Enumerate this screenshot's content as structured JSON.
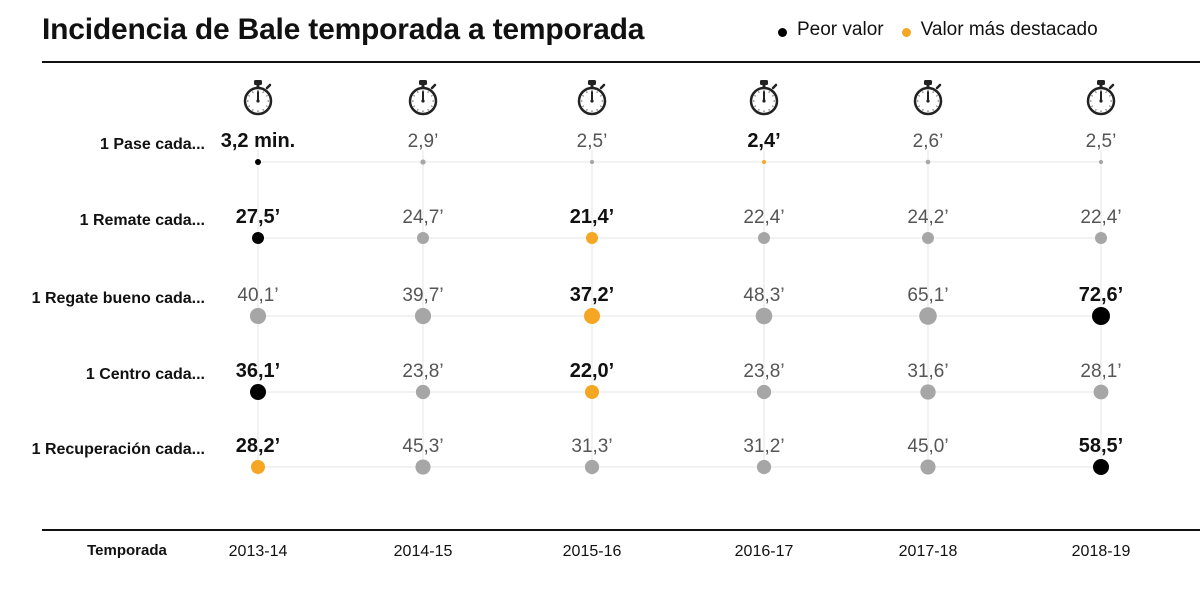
{
  "header": {
    "title": "Incidencia de Bale temporada a temporada",
    "legend": [
      {
        "label": "Peor valor",
        "color": "#000000"
      },
      {
        "label": "Valor más destacado",
        "color": "#f5a623"
      }
    ]
  },
  "icons": {
    "stopwatch": "stopwatch-icon"
  },
  "colors": {
    "worst": "#000000",
    "best": "#f5a623",
    "neutral": "#a6a6a6",
    "grid": "#e6e6e6"
  },
  "chart_data": {
    "type": "scatter",
    "title": "Incidencia de Bale temporada a temporada",
    "xlabel": "Temporada",
    "categories": [
      "2013-14",
      "2014-15",
      "2015-16",
      "2016-17",
      "2017-18",
      "2018-19"
    ],
    "series": [
      {
        "name": "1 Pase cada...",
        "values": [
          3.2,
          2.9,
          2.5,
          2.4,
          2.6,
          2.5
        ],
        "labels": [
          "3,2 min.",
          "2,9’",
          "2,5’",
          "2,4’",
          "2,6’",
          "2,5’"
        ],
        "highlight": [
          "worst",
          null,
          null,
          "best",
          null,
          null
        ]
      },
      {
        "name": "1 Remate cada...",
        "values": [
          27.5,
          24.7,
          21.4,
          22.4,
          24.2,
          22.4
        ],
        "labels": [
          "27,5’",
          "24,7’",
          "21,4’",
          "22,4’",
          "24,2’",
          "22,4’"
        ],
        "highlight": [
          "worst",
          null,
          "best",
          null,
          null,
          null
        ]
      },
      {
        "name": "1 Regate bueno cada...",
        "values": [
          40.1,
          39.7,
          37.2,
          48.3,
          65.1,
          72.6
        ],
        "labels": [
          "40,1’",
          "39,7’",
          "37,2’",
          "48,3’",
          "65,1’",
          "72,6’"
        ],
        "highlight": [
          null,
          null,
          "best",
          null,
          null,
          "worst"
        ]
      },
      {
        "name": "1 Centro cada...",
        "values": [
          36.1,
          23.8,
          22.0,
          23.8,
          31.6,
          28.1
        ],
        "labels": [
          "36,1’",
          "23,8’",
          "22,0’",
          "23,8’",
          "31,6’",
          "28,1’"
        ],
        "highlight": [
          "worst",
          null,
          "best",
          null,
          null,
          null
        ]
      },
      {
        "name": "1 Recuperación cada...",
        "values": [
          28.2,
          45.3,
          31.3,
          31.2,
          45.0,
          58.5
        ],
        "labels": [
          "28,2’",
          "45,3’",
          "31,3’",
          "31,2’",
          "45,0’",
          "58,5’"
        ],
        "highlight": [
          "best",
          null,
          null,
          null,
          null,
          "worst"
        ]
      }
    ]
  }
}
